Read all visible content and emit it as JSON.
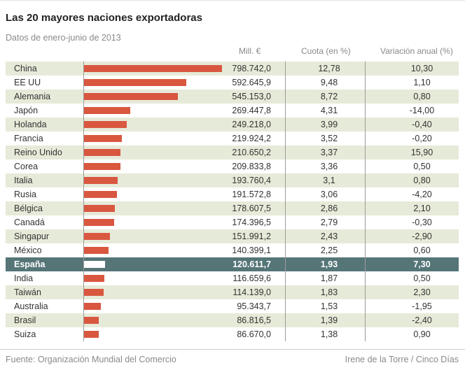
{
  "title": "Las 20 mayores naciones exportadoras",
  "subtitle": "Datos de enero-junio de 2013",
  "headers": {
    "value": "Mill. €",
    "share": "Cuota (en %)",
    "change": "Variación anual (%)"
  },
  "colors": {
    "bar": "#d9573f",
    "highlight_row": "#557577",
    "stripe": "#e6ead8"
  },
  "chart_data": {
    "type": "bar",
    "orientation": "horizontal",
    "title": "Las 20 mayores naciones exportadoras",
    "subtitle": "Datos de enero-junio de 2013",
    "unit": "Mill. €",
    "highlight": "España",
    "categories": [
      "China",
      "EE UU",
      "Alemania",
      "Japón",
      "Holanda",
      "Francia",
      "Reino Unido",
      "Corea",
      "Italia",
      "Rusia",
      "Bélgica",
      "Canadá",
      "Singapur",
      "México",
      "España",
      "India",
      "Taiwán",
      "Australia",
      "Brasil",
      "Suiza"
    ],
    "rows": [
      {
        "country": "China",
        "value": 798742.0,
        "value_label": "798.742,0",
        "share": "12,78",
        "change": "10,30"
      },
      {
        "country": "EE UU",
        "value": 592645.9,
        "value_label": "592.645,9",
        "share": "9,48",
        "change": "1,10"
      },
      {
        "country": "Alemania",
        "value": 545153.0,
        "value_label": "545.153,0",
        "share": "8,72",
        "change": "0,80"
      },
      {
        "country": "Japón",
        "value": 269447.8,
        "value_label": "269.447,8",
        "share": "4,31",
        "change": "-14,00"
      },
      {
        "country": "Holanda",
        "value": 249218.0,
        "value_label": "249.218,0",
        "share": "3,99",
        "change": "-0,40"
      },
      {
        "country": "Francia",
        "value": 219924.2,
        "value_label": "219.924,2",
        "share": "3,52",
        "change": "-0,20"
      },
      {
        "country": "Reino Unido",
        "value": 210650.2,
        "value_label": "210.650,2",
        "share": "3,37",
        "change": "15,90"
      },
      {
        "country": "Corea",
        "value": 209833.8,
        "value_label": "209.833,8",
        "share": "3,36",
        "change": "0,50"
      },
      {
        "country": "Italia",
        "value": 193760.4,
        "value_label": "193.760,4",
        "share": "3,1",
        "change": "0,80"
      },
      {
        "country": "Rusia",
        "value": 191572.8,
        "value_label": "191.572,8",
        "share": "3,06",
        "change": "-4,20"
      },
      {
        "country": "Bélgica",
        "value": 178607.5,
        "value_label": "178.607,5",
        "share": "2,86",
        "change": "2,10"
      },
      {
        "country": "Canadá",
        "value": 174396.5,
        "value_label": "174.396,5",
        "share": "2,79",
        "change": "-0,30"
      },
      {
        "country": "Singapur",
        "value": 151991.2,
        "value_label": "151.991,2",
        "share": "2,43",
        "change": "-2,90"
      },
      {
        "country": "México",
        "value": 140399.1,
        "value_label": "140.399,1",
        "share": "2,25",
        "change": "0,60"
      },
      {
        "country": "España",
        "value": 120611.7,
        "value_label": "120.611,7",
        "share": "1,93",
        "change": "7,30"
      },
      {
        "country": "India",
        "value": 116659.6,
        "value_label": "116.659,6",
        "share": "1,87",
        "change": "0,50"
      },
      {
        "country": "Taiwán",
        "value": 114139.0,
        "value_label": "114.139,0",
        "share": "1,83",
        "change": "2,30"
      },
      {
        "country": "Australia",
        "value": 95343.7,
        "value_label": "95.343,7",
        "share": "1,53",
        "change": "-1,95"
      },
      {
        "country": "Brasil",
        "value": 86816.5,
        "value_label": "86.816,5",
        "share": "1,39",
        "change": "-2,40"
      },
      {
        "country": "Suiza",
        "value": 86670.0,
        "value_label": "86.670,0",
        "share": "1,38",
        "change": "0,90"
      }
    ],
    "xlim": [
      0,
      798742.0
    ]
  },
  "footer": {
    "source": "Fuente: Organización Mundial del Comercio",
    "credit": "Irene de la Torre / Cinco Días"
  }
}
